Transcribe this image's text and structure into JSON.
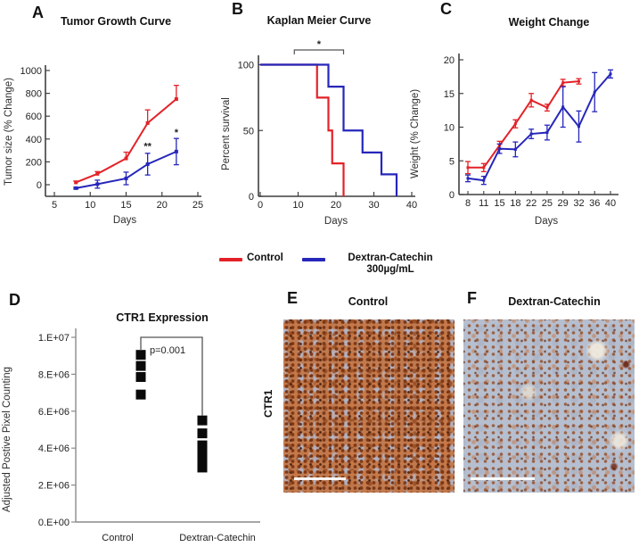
{
  "panels": {
    "A": {
      "letter": "A"
    },
    "B": {
      "letter": "B"
    },
    "C": {
      "letter": "C"
    },
    "D": {
      "letter": "D"
    },
    "E": {
      "letter": "E",
      "title": "Control",
      "row_label": "CTR1"
    },
    "F": {
      "letter": "F",
      "title": "Dextran-Catechin"
    }
  },
  "legend": {
    "position": "bottom-center-of-top-row",
    "items": [
      {
        "label": "Control",
        "color": "#e32228"
      },
      {
        "label": "Dextran-Catechin",
        "sublabel": "300µg/mL",
        "color": "#2626bb"
      }
    ]
  },
  "chart_data": [
    {
      "panel": "A",
      "type": "line",
      "title": "Tumor Growth Curve",
      "xlabel": "Days",
      "ylabel": "Tumor size (% Change)",
      "xlim": [
        5,
        25
      ],
      "ylim": [
        0,
        1000
      ],
      "xticks": [
        5,
        10,
        15,
        20,
        25
      ],
      "yticks": [
        0,
        200,
        400,
        600,
        800,
        1000
      ],
      "grid": false,
      "series": [
        {
          "name": "Control",
          "color": "#e32228",
          "err_dir": "up",
          "x": [
            8,
            11,
            15,
            18,
            22
          ],
          "y": [
            20,
            95,
            230,
            540,
            750
          ],
          "yerr": [
            12,
            20,
            55,
            115,
            120
          ]
        },
        {
          "name": "Dextran-Catechin 300µg/mL",
          "color": "#2626bb",
          "err_dir": "both",
          "x": [
            8,
            11,
            15,
            18,
            22
          ],
          "y": [
            -30,
            5,
            55,
            180,
            290
          ],
          "yerr": [
            8,
            35,
            55,
            95,
            115
          ]
        }
      ],
      "annotations": [
        {
          "text": "**",
          "day": 18,
          "value": 310
        },
        {
          "text": "*",
          "day": 22,
          "value": 430
        }
      ]
    },
    {
      "panel": "B",
      "type": "line",
      "subtype": "step-survival",
      "title": "Kaplan Meier Curve",
      "xlabel": "Days",
      "ylabel": "Percent survival",
      "xlim": [
        0,
        40
      ],
      "ylim": [
        0,
        100
      ],
      "xticks": [
        0,
        10,
        20,
        30,
        40
      ],
      "yticks": [
        0,
        50,
        100
      ],
      "grid": false,
      "series": [
        {
          "name": "Control",
          "color": "#e32228",
          "points": [
            [
              0,
              100
            ],
            [
              15,
              100
            ],
            [
              15,
              75
            ],
            [
              18,
              75
            ],
            [
              18,
              50
            ],
            [
              19,
              50
            ],
            [
              19,
              25
            ],
            [
              22,
              25
            ],
            [
              22,
              0
            ]
          ]
        },
        {
          "name": "Dextran-Catechin 300µg/mL",
          "color": "#2626bb",
          "points": [
            [
              0,
              100
            ],
            [
              18,
              100
            ],
            [
              18,
              83.3
            ],
            [
              22,
              83.3
            ],
            [
              22,
              50
            ],
            [
              27,
              50
            ],
            [
              27,
              33.3
            ],
            [
              32,
              33.3
            ],
            [
              32,
              16.7
            ],
            [
              36,
              16.7
            ],
            [
              36,
              0
            ]
          ]
        }
      ],
      "annotations": [
        {
          "text": "*",
          "x1": 9,
          "x2": 22
        }
      ]
    },
    {
      "panel": "C",
      "type": "line",
      "title": "Weight Change",
      "xlabel": "Days",
      "ylabel": "Weight (% Change)",
      "categories": [
        8,
        11,
        15,
        18,
        22,
        25,
        29,
        32,
        36,
        40
      ],
      "ylim": [
        0,
        20
      ],
      "yticks": [
        0,
        5,
        10,
        15,
        20
      ],
      "grid": false,
      "series": [
        {
          "name": "Control",
          "color": "#e32228",
          "values": [
            4,
            4,
            7.3,
            10.5,
            14,
            12.9,
            16.6,
            16.8
          ],
          "yerr": [
            0.9,
            0.6,
            0.6,
            0.6,
            1.0,
            0.5,
            0.5,
            0.4
          ]
        },
        {
          "name": "Dextran-Catechin 300µg/mL",
          "color": "#2626bb",
          "values": [
            2.4,
            2.1,
            6.8,
            6.7,
            9,
            9.2,
            13,
            10.1,
            15.2,
            17.9
          ],
          "yerr": [
            0.5,
            0.6,
            0.7,
            1.1,
            0.7,
            1.1,
            3.0,
            2.3,
            2.9,
            0.6
          ]
        }
      ]
    },
    {
      "panel": "D",
      "type": "scatter",
      "title": "CTR1 Expression",
      "xlabel": "",
      "ylabel": "Adjusted Postive Pixel Counting",
      "categories": [
        "Control",
        "Dextran-Catechin"
      ],
      "ylim": [
        0,
        10000000
      ],
      "yticks": [
        0,
        2000000,
        4000000,
        6000000,
        8000000,
        10000000
      ],
      "ytick_labels": [
        "0.E+00",
        "2.E+06",
        "4.E+06",
        "6.E+06",
        "8.E+06",
        "1.E+07"
      ],
      "marker": "black-square",
      "series": [
        {
          "name": "Control",
          "values": [
            9050000,
            8450000,
            7850000,
            6900000
          ]
        },
        {
          "name": "Dextran-Catechin",
          "values": [
            5500000,
            4800000,
            4150000,
            3700000,
            3350000,
            2950000
          ]
        }
      ],
      "annotation": "p=0.001"
    }
  ]
}
